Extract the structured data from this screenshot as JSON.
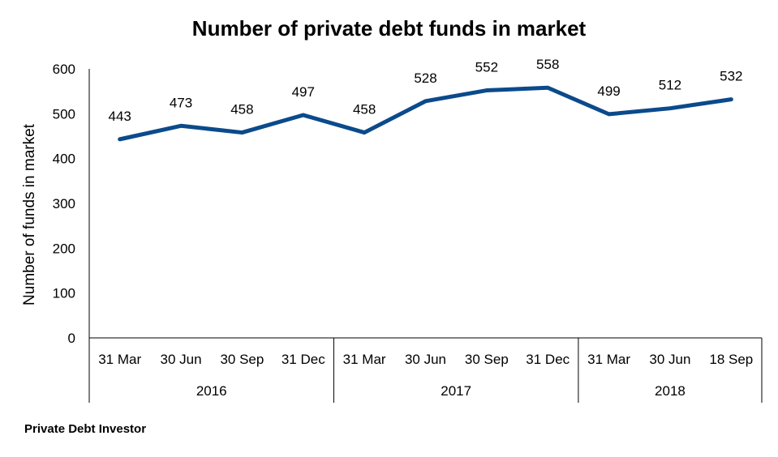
{
  "chart_data": {
    "type": "line",
    "title": "Number of private debt funds in market",
    "ylabel": "Number of funds in market",
    "xlabel": "",
    "ylim": [
      0,
      600
    ],
    "yticks": [
      "0",
      "100",
      "200",
      "300",
      "400",
      "500",
      "600"
    ],
    "categories": [
      "31 Mar",
      "30 Jun",
      "30 Sep",
      "31 Dec",
      "31 Mar",
      "30 Jun",
      "30 Sep",
      "31 Dec",
      "31 Mar",
      "30 Jun",
      "18 Sep"
    ],
    "groups": [
      {
        "label": "2016",
        "count": 4
      },
      {
        "label": "2017",
        "count": 4
      },
      {
        "label": "2018",
        "count": 3
      }
    ],
    "series": [
      {
        "values": [
          443,
          473,
          458,
          497,
          458,
          528,
          552,
          558,
          499,
          512,
          532
        ],
        "color": "#0b4a8b"
      }
    ],
    "grid": false,
    "legend": "none"
  },
  "source": "Private Debt Investor"
}
